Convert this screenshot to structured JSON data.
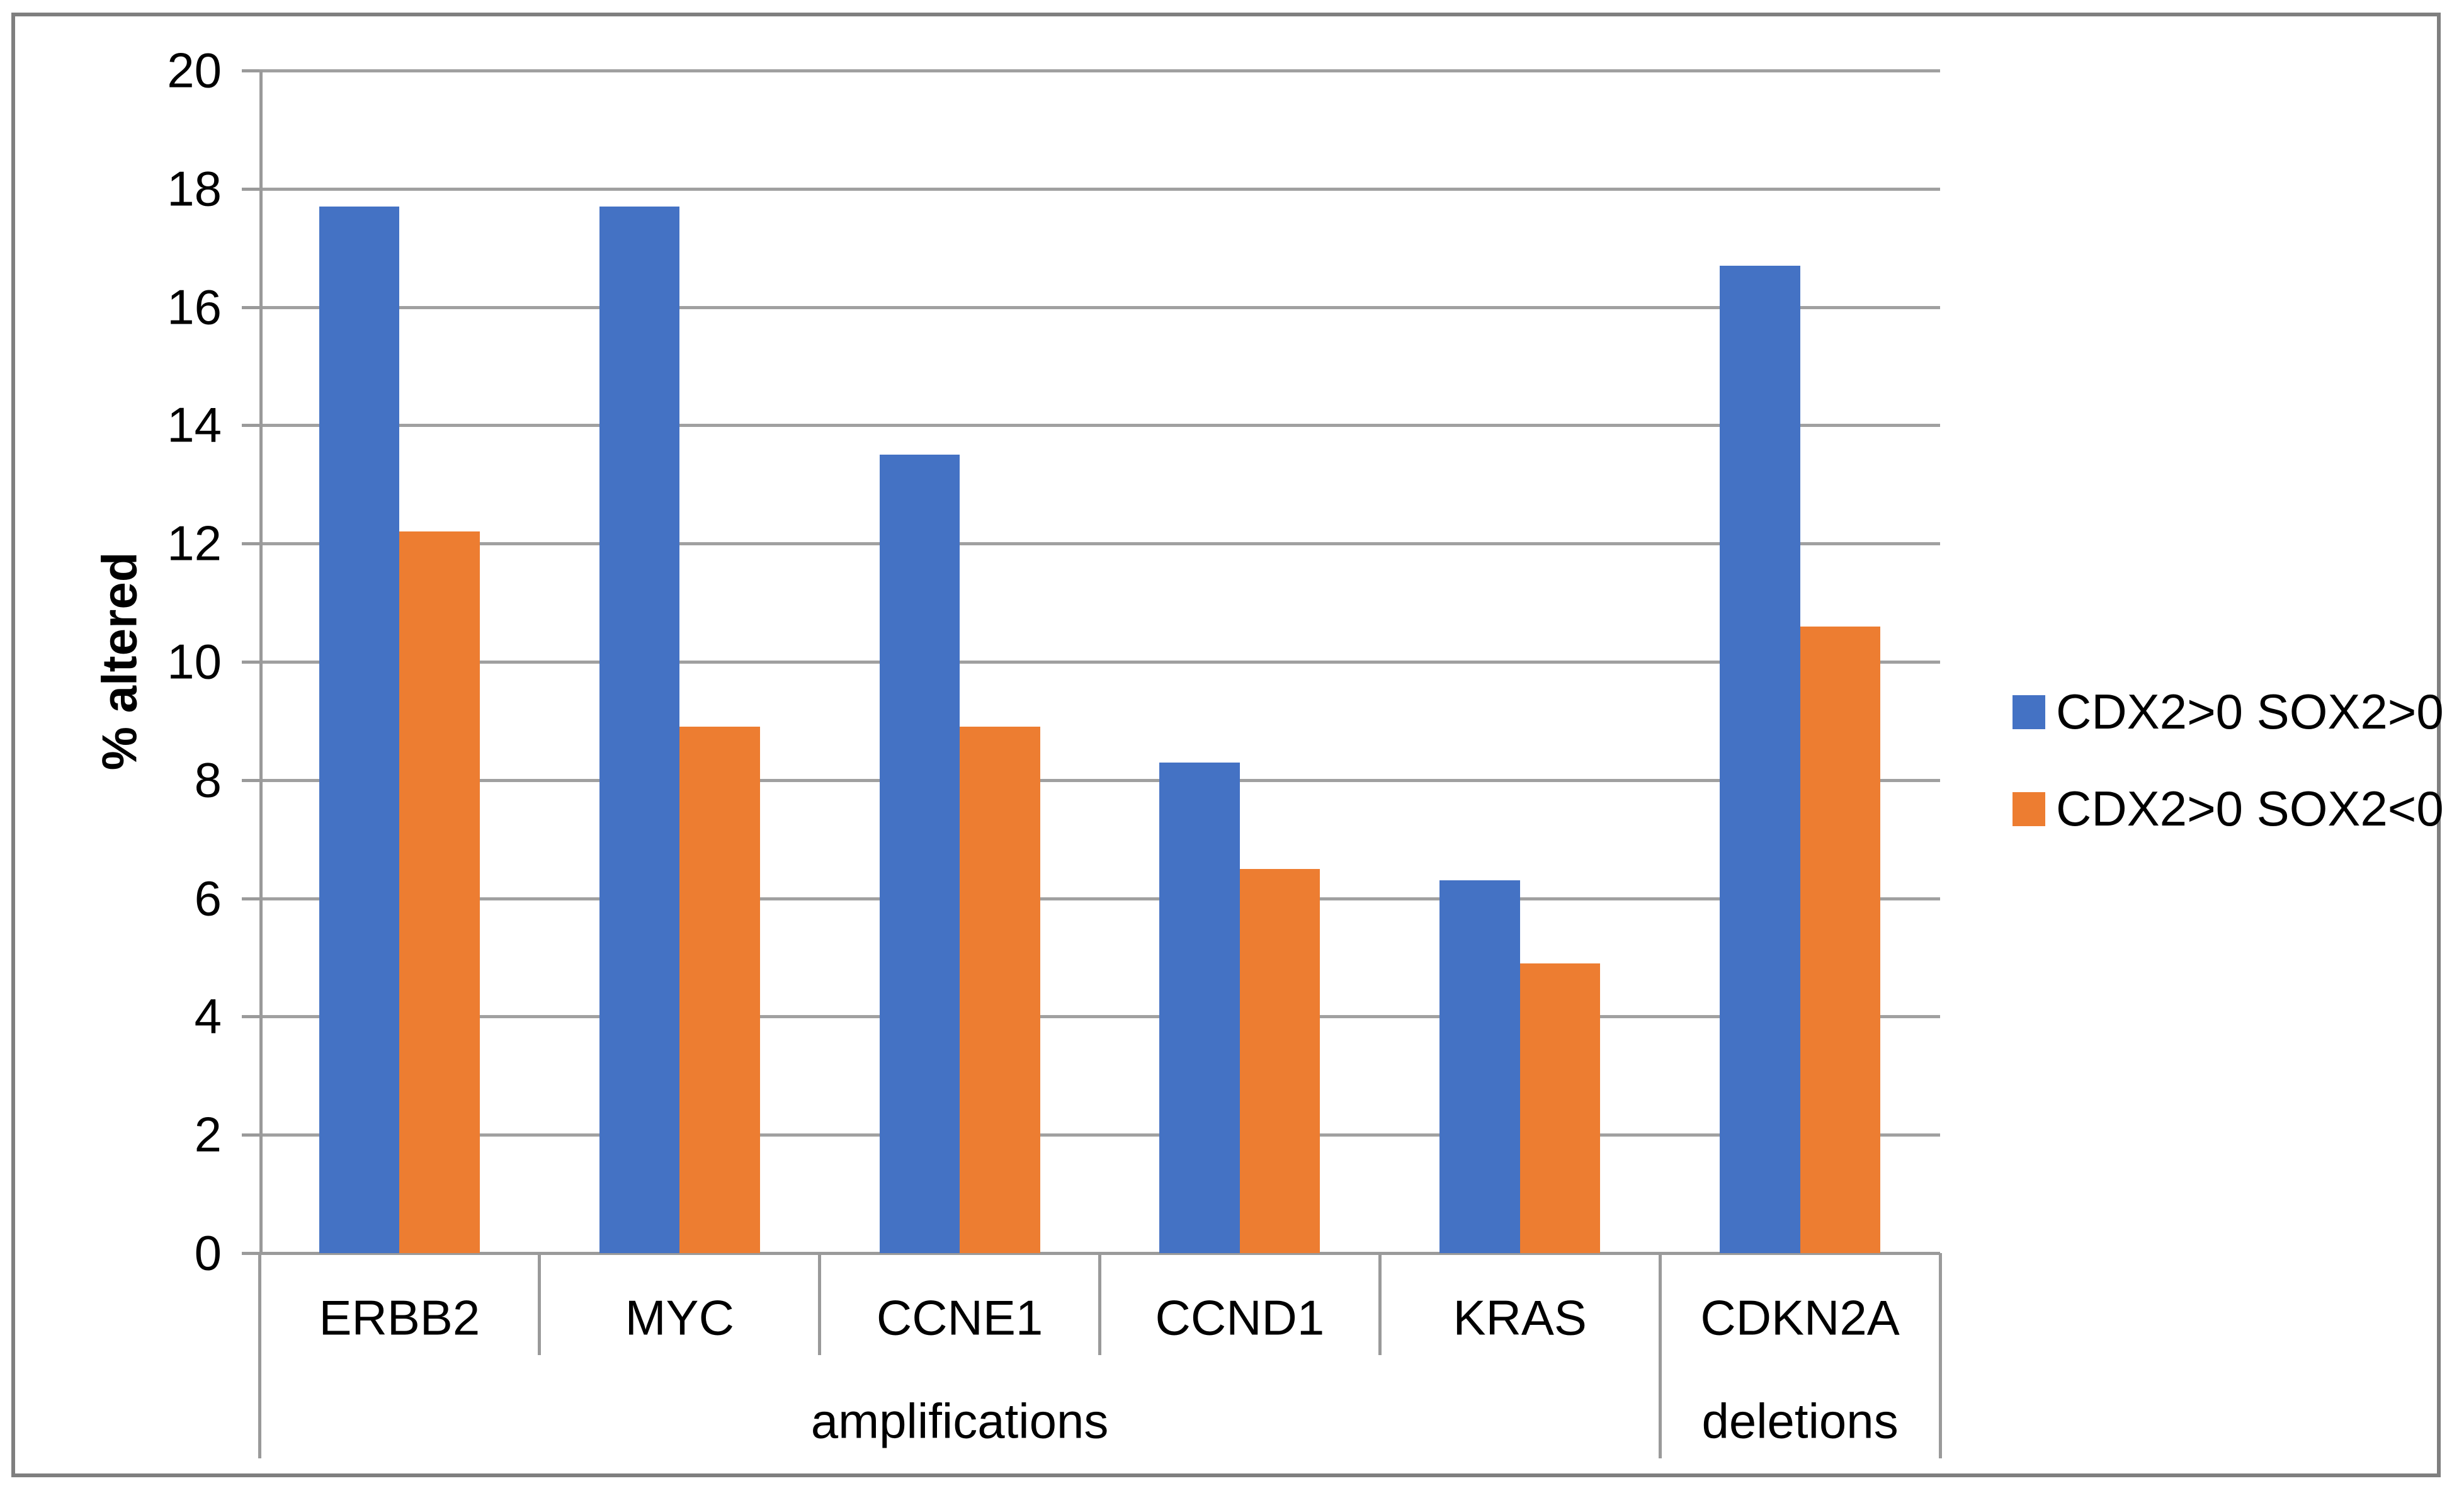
{
  "chart_data": {
    "type": "bar",
    "title": "",
    "xlabel": "",
    "ylabel": "% altered",
    "categories": [
      "ERBB2",
      "MYC",
      "CCNE1",
      "CCND1",
      "KRAS",
      "CDKN2A"
    ],
    "category_groups": [
      {
        "label": "amplifications",
        "start": 0,
        "end": 4
      },
      {
        "label": "deletions",
        "start": 5,
        "end": 5
      }
    ],
    "series": [
      {
        "name": "CDX2>0 SOX2>0",
        "color": "#4472C4",
        "values": [
          17.7,
          17.7,
          13.5,
          8.3,
          6.3,
          16.7
        ]
      },
      {
        "name": "CDX2>0 SOX2<0",
        "color": "#ED7D31",
        "values": [
          12.2,
          8.9,
          8.9,
          6.5,
          4.9,
          10.6
        ]
      }
    ],
    "ylim": [
      0,
      20
    ],
    "ytick_step": 2,
    "ytick_labels": [
      "0",
      "2",
      "4",
      "6",
      "8",
      "10",
      "12",
      "14",
      "16",
      "18",
      "20"
    ],
    "grid": true,
    "legend_position": "right"
  },
  "legend": {
    "items": [
      {
        "label": "CDX2>0 SOX2>0",
        "color": "#4472C4"
      },
      {
        "label": "CDX2>0 SOX2<0",
        "color": "#ED7D31"
      }
    ]
  },
  "colors": {
    "bar_blue": "#4472C4",
    "bar_orange": "#ED7D31",
    "gridline": "#a0a0a0",
    "axis": "#9a9a9a",
    "frame_border": "#7f7f7f",
    "text": "#000000",
    "background": "#ffffff"
  }
}
